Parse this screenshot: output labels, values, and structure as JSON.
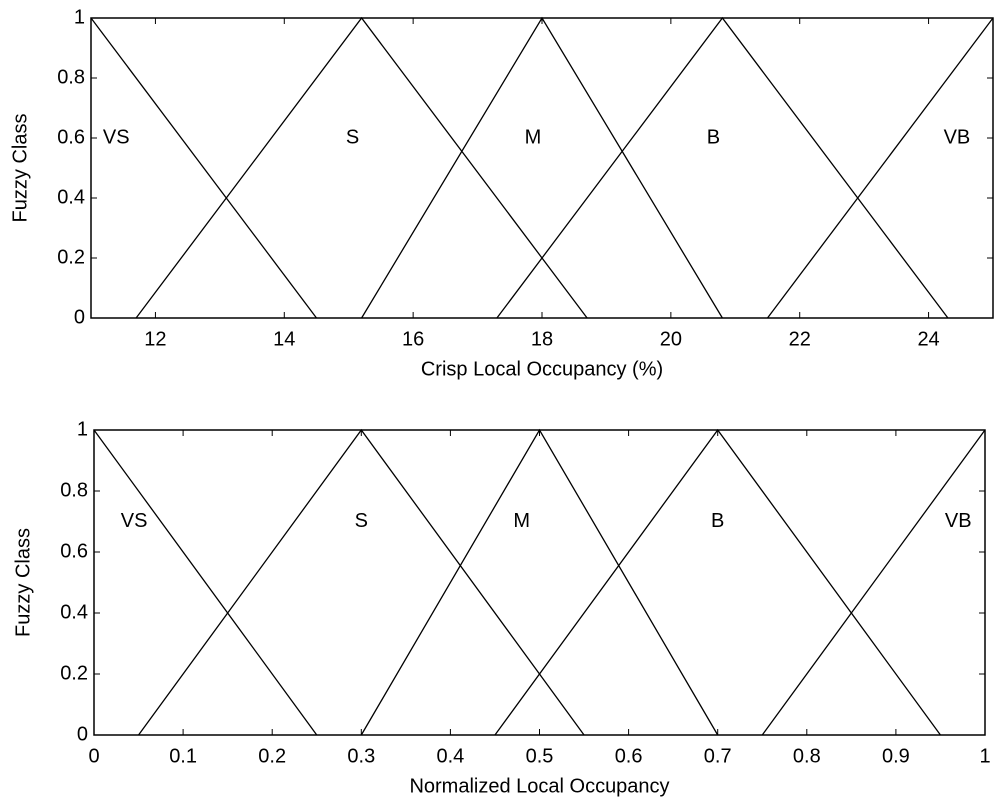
{
  "chart_data": [
    {
      "type": "line",
      "xlabel": "Crisp Local Occupancy (%)",
      "ylabel": "Fuzzy Class",
      "xlim": [
        11,
        25
      ],
      "xticks": [
        12,
        14,
        16,
        18,
        20,
        22,
        24
      ],
      "ylim": [
        0,
        1
      ],
      "yticks": [
        0,
        0.2,
        0.4,
        0.6,
        0.8,
        1
      ],
      "series": [
        {
          "name": "VS",
          "color": "#000000",
          "x": [
            11,
            14.5
          ],
          "values": [
            1,
            0
          ]
        },
        {
          "name": "S",
          "color": "#000000",
          "x": [
            11.7,
            15.2,
            18.7
          ],
          "values": [
            0,
            1,
            0
          ]
        },
        {
          "name": "M",
          "color": "#000000",
          "x": [
            15.2,
            18,
            20.8
          ],
          "values": [
            0,
            1,
            0
          ]
        },
        {
          "name": "B",
          "color": "#000000",
          "x": [
            17.3,
            20.8,
            24.3
          ],
          "values": [
            0,
            1,
            0
          ]
        },
        {
          "name": "VB",
          "color": "#000000",
          "x": [
            21.5,
            25
          ],
          "values": [
            0,
            1
          ]
        }
      ]
    },
    {
      "type": "line",
      "xlabel": "Normalized Local Occupancy",
      "ylabel": "Fuzzy Class",
      "xlim": [
        0,
        1
      ],
      "xticks": [
        0,
        0.1,
        0.2,
        0.3,
        0.4,
        0.5,
        0.6,
        0.7,
        0.8,
        0.9,
        1
      ],
      "ylim": [
        0,
        1
      ],
      "yticks": [
        0,
        0.2,
        0.4,
        0.6,
        0.8,
        1
      ],
      "series": [
        {
          "name": "VS",
          "color": "#000000",
          "x": [
            0,
            0.25
          ],
          "values": [
            1,
            0
          ]
        },
        {
          "name": "S",
          "color": "#000000",
          "x": [
            0.05,
            0.3,
            0.55
          ],
          "values": [
            0,
            1,
            0
          ]
        },
        {
          "name": "M",
          "color": "#000000",
          "x": [
            0.3,
            0.5,
            0.7
          ],
          "values": [
            0,
            1,
            0
          ]
        },
        {
          "name": "B",
          "color": "#000000",
          "x": [
            0.45,
            0.7,
            0.95
          ],
          "values": [
            0,
            1,
            0
          ]
        },
        {
          "name": "VB",
          "color": "#000000",
          "x": [
            0.75,
            1
          ],
          "values": [
            0,
            1
          ]
        }
      ]
    }
  ]
}
